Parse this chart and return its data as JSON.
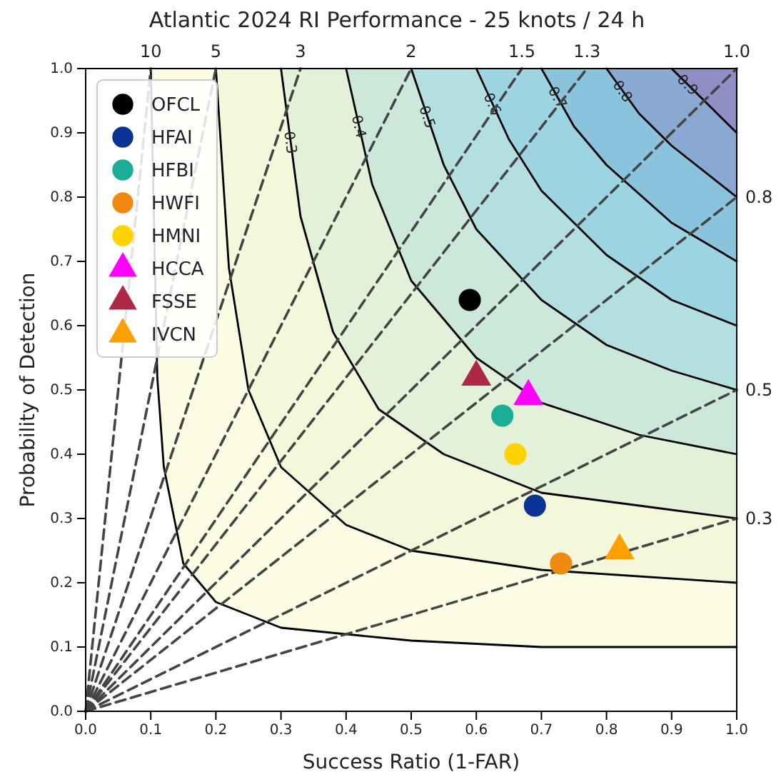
{
  "chart_data": {
    "type": "scatter",
    "title": "Atlantic 2024 RI Performance - 25 knots / 24 h",
    "xlabel": "Success Ratio (1-FAR)",
    "ylabel": "Probability of Detection",
    "xlim": [
      0,
      1
    ],
    "ylim": [
      0,
      1
    ],
    "xticks": [
      {
        "value": 0,
        "label": "0.0"
      },
      0.1,
      0.2,
      0.3,
      0.4,
      0.5,
      0.6,
      0.7,
      0.8,
      0.9,
      {
        "value": 1,
        "label": "1.0"
      }
    ],
    "yticks": [
      {
        "value": 0,
        "label": "0.0"
      },
      0.1,
      0.2,
      0.3,
      0.4,
      0.5,
      0.6,
      0.7,
      0.8,
      0.9,
      {
        "value": 1,
        "label": "1.0"
      }
    ],
    "grid": false,
    "legend": "top left",
    "series": [
      {
        "type": "line",
        "color": "#000000",
        "line_style": "solid",
        "x": [
          0.1,
          0.11,
          0.12,
          0.15,
          0.2,
          0.3,
          0.5,
          0.7,
          1.0
        ],
        "values": [
          1.0,
          0.52,
          0.38,
          0.23,
          0.17,
          0.13,
          0.11,
          0.1,
          0.1
        ]
      },
      {
        "type": "line",
        "color": "#000000",
        "line_style": "solid",
        "x": [
          0.2,
          0.22,
          0.25,
          0.3,
          0.4,
          0.5,
          0.7,
          1.0
        ],
        "values": [
          1.0,
          0.69,
          0.5,
          0.38,
          0.29,
          0.25,
          0.22,
          0.2
        ]
      },
      {
        "type": "line",
        "name": "0.3",
        "color": "#000000",
        "line_style": "solid",
        "x": [
          0.3,
          0.33,
          0.38,
          0.45,
          0.55,
          0.7,
          0.85,
          1.0
        ],
        "values": [
          1.0,
          0.77,
          0.59,
          0.47,
          0.4,
          0.34,
          0.32,
          0.3
        ]
      },
      {
        "type": "line",
        "name": "0.4",
        "color": "#000000",
        "line_style": "solid",
        "x": [
          0.4,
          0.44,
          0.5,
          0.6,
          0.7,
          0.85,
          1.0
        ],
        "values": [
          1.0,
          0.82,
          0.67,
          0.55,
          0.48,
          0.43,
          0.4
        ]
      },
      {
        "type": "line",
        "name": "0.5",
        "color": "#000000",
        "line_style": "solid",
        "x": [
          0.5,
          0.55,
          0.6,
          0.7,
          0.8,
          0.9,
          1.0
        ],
        "values": [
          1.0,
          0.85,
          0.75,
          0.64,
          0.57,
          0.53,
          0.5
        ]
      },
      {
        "type": "line",
        "name": "0.6",
        "color": "#000000",
        "line_style": "solid",
        "x": [
          0.6,
          0.65,
          0.7,
          0.8,
          0.9,
          1.0
        ],
        "values": [
          1.0,
          0.89,
          0.81,
          0.71,
          0.64,
          0.6
        ]
      },
      {
        "type": "line",
        "name": "0.7",
        "color": "#000000",
        "line_style": "solid",
        "x": [
          0.7,
          0.75,
          0.8,
          0.9,
          1.0
        ],
        "values": [
          1.0,
          0.91,
          0.85,
          0.76,
          0.7
        ]
      },
      {
        "type": "line",
        "name": "0.8",
        "color": "#000000",
        "line_style": "solid",
        "x": [
          0.8,
          0.85,
          0.9,
          1.0
        ],
        "values": [
          1.0,
          0.93,
          0.88,
          0.8
        ]
      },
      {
        "type": "line",
        "name": "0.9",
        "color": "#000000",
        "line_style": "solid",
        "x": [
          0.9,
          0.95,
          1.0
        ],
        "values": [
          1.0,
          0.95,
          0.9
        ]
      },
      {
        "type": "line",
        "name": "10",
        "color": "#444444",
        "line_style": "dashed",
        "x": [
          0,
          0.1
        ],
        "values": [
          0,
          1.0
        ]
      },
      {
        "type": "line",
        "name": "5",
        "color": "#444444",
        "line_style": "dashed",
        "x": [
          0,
          0.2
        ],
        "values": [
          0,
          1.0
        ]
      },
      {
        "type": "line",
        "name": "3",
        "color": "#444444",
        "line_style": "dashed",
        "x": [
          0,
          0.33
        ],
        "values": [
          0,
          1.0
        ]
      },
      {
        "type": "line",
        "name": "2",
        "color": "#444444",
        "line_style": "dashed",
        "x": [
          0,
          0.5
        ],
        "values": [
          0,
          1.0
        ]
      },
      {
        "type": "line",
        "name": "1.5",
        "color": "#444444",
        "line_style": "dashed",
        "x": [
          0,
          0.67
        ],
        "values": [
          0,
          1.0
        ]
      },
      {
        "type": "line",
        "name": "1.3",
        "color": "#444444",
        "line_style": "dashed",
        "x": [
          0,
          0.77
        ],
        "values": [
          0,
          1.0
        ]
      },
      {
        "type": "line",
        "name": "1.0",
        "color": "#444444",
        "line_style": "dashed",
        "x": [
          0,
          1.0
        ],
        "values": [
          0,
          1.0
        ]
      },
      {
        "type": "line",
        "name": "0.8",
        "color": "#444444",
        "line_style": "dashed",
        "x": [
          0,
          1.0
        ],
        "values": [
          0,
          0.8
        ]
      },
      {
        "type": "line",
        "name": "0.5",
        "color": "#444444",
        "line_style": "dashed",
        "x": [
          0,
          1.0
        ],
        "values": [
          0,
          0.5
        ]
      },
      {
        "type": "line",
        "name": "0.3",
        "color": "#444444",
        "line_style": "dashed",
        "x": [
          0,
          1.0
        ],
        "values": [
          0,
          0.3
        ]
      },
      {
        "name": "OFCL",
        "color": "#000000",
        "marker": "circle",
        "x": [
          0.59
        ],
        "values": [
          0.64
        ]
      },
      {
        "name": "HFAI",
        "color": "#0a3494",
        "marker": "circle",
        "x": [
          0.69
        ],
        "values": [
          0.32
        ]
      },
      {
        "name": "HFBI",
        "color": "#1aae96",
        "marker": "circle",
        "x": [
          0.64
        ],
        "values": [
          0.46
        ]
      },
      {
        "name": "HWFI",
        "color": "#f08a10",
        "marker": "circle",
        "x": [
          0.73
        ],
        "values": [
          0.23
        ]
      },
      {
        "name": "HMNI",
        "color": "#ffd200",
        "marker": "circle",
        "x": [
          0.66
        ],
        "values": [
          0.4
        ]
      },
      {
        "name": "HCCA",
        "color": "#ff00ff",
        "marker": "triangle",
        "x": [
          0.68
        ],
        "values": [
          0.49
        ]
      },
      {
        "name": "FSSE",
        "color": "#b02848",
        "marker": "triangle",
        "x": [
          0.6
        ],
        "values": [
          0.52
        ]
      },
      {
        "name": "IVCN",
        "color": "#ffa000",
        "marker": "triangle",
        "x": [
          0.82
        ],
        "values": [
          0.25
        ]
      }
    ]
  }
}
